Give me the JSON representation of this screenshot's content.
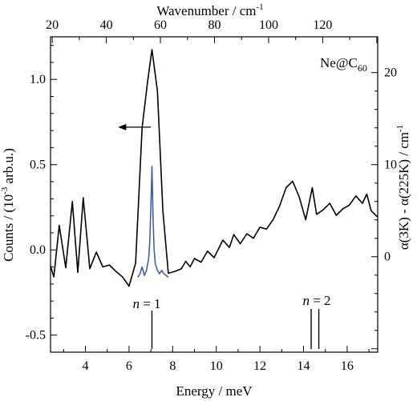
{
  "chart_data": {
    "type": "line",
    "title": "",
    "xlabel": "Energy / meV",
    "xlabel_top": "Wavenumber / cm",
    "xlabel_top_sup": "-1",
    "ylabel_left_pre": "Counts / (10",
    "ylabel_left_sup": "-3",
    "ylabel_left_post": " arb.u.)",
    "ylabel_right": "α(3K) - α(225K) / cm",
    "ylabel_right_sup": "-1",
    "xlim": [
      2.4,
      17.4
    ],
    "ylim_left": [
      -0.6,
      1.25
    ],
    "xlim_top_cm": [
      19.36,
      140.34
    ],
    "ylim_right": [
      -10.37,
      23.89
    ],
    "x_ticks": [
      4,
      6,
      8,
      10,
      12,
      14,
      16
    ],
    "x_tick_labels": [
      "4",
      "6",
      "8",
      "10",
      "12",
      "14",
      "16"
    ],
    "x_top_ticks": [
      20,
      40,
      60,
      80,
      100,
      120
    ],
    "x_top_tick_labels": [
      "20",
      "40",
      "60",
      "80",
      "100",
      "120"
    ],
    "y_left_ticks": [
      -0.5,
      0.0,
      0.5,
      1.0
    ],
    "y_left_tick_labels": [
      "-0.5",
      "0.0",
      "0.5",
      "1.0"
    ],
    "y_right_ticks": [
      0,
      10,
      20
    ],
    "y_right_tick_labels": [
      "0",
      "10",
      "20"
    ],
    "grid": false,
    "annotations": {
      "species_main": "Ne@C",
      "species_sub": "60",
      "n1_italic": "n",
      "n1_rest": " = 1",
      "n2_italic": "n",
      "n2_rest": " = 2",
      "n1_marker_x": 7.05,
      "n2_marker_x": [
        14.35,
        14.7
      ],
      "arrow_x": [
        7.0,
        5.5
      ],
      "arrow_y": 0.72
    },
    "series": [
      {
        "axis": "right",
        "color": "#000000",
        "x": [
          2.4,
          2.55,
          2.8,
          3.1,
          3.4,
          3.65,
          3.9,
          4.2,
          4.5,
          4.8,
          5.1,
          5.4,
          5.7,
          6.0,
          6.3,
          6.6,
          6.85,
          7.05,
          7.3,
          7.55,
          7.8,
          8.1,
          8.4,
          8.6,
          8.8,
          9.0,
          9.3,
          9.6,
          9.9,
          10.3,
          10.6,
          10.8,
          11.1,
          11.4,
          11.7,
          12.0,
          12.3,
          12.6,
          12.9,
          13.2,
          13.5,
          13.8,
          14.1,
          14.4,
          14.6,
          14.9,
          15.2,
          15.5,
          15.8,
          16.1,
          16.4,
          16.7,
          16.9,
          17.1,
          17.4
        ],
        "y": [
          -1.0,
          -2.2,
          3.4,
          -1.2,
          6.0,
          -1.7,
          6.4,
          -1.3,
          0.5,
          -1.1,
          -0.9,
          -1.6,
          -2.2,
          -3.2,
          -0.7,
          14.0,
          19.0,
          22.5,
          18.0,
          5.0,
          -1.8,
          -1.6,
          -1.3,
          -0.5,
          -1.1,
          -0.2,
          -0.6,
          0.6,
          -0.1,
          1.8,
          1.0,
          2.4,
          1.4,
          2.5,
          2.0,
          3.2,
          3.0,
          4.0,
          5.5,
          7.5,
          8.2,
          6.5,
          4.0,
          7.5,
          4.6,
          5.1,
          5.8,
          4.5,
          5.2,
          5.6,
          6.6,
          5.8,
          6.8,
          5.0,
          4.3
        ]
      },
      {
        "axis": "left",
        "color": "#3a56a5",
        "x": [
          6.4,
          6.5,
          6.6,
          6.7,
          6.8,
          6.9,
          6.95,
          7.0,
          7.05,
          7.1,
          7.15,
          7.2,
          7.3,
          7.4,
          7.5,
          7.6,
          7.7,
          7.8
        ],
        "y": [
          -0.16,
          -0.14,
          -0.1,
          -0.15,
          -0.12,
          -0.05,
          0.05,
          0.25,
          0.49,
          0.2,
          0.0,
          -0.08,
          -0.12,
          -0.14,
          -0.12,
          -0.14,
          -0.15,
          -0.16
        ]
      }
    ]
  }
}
